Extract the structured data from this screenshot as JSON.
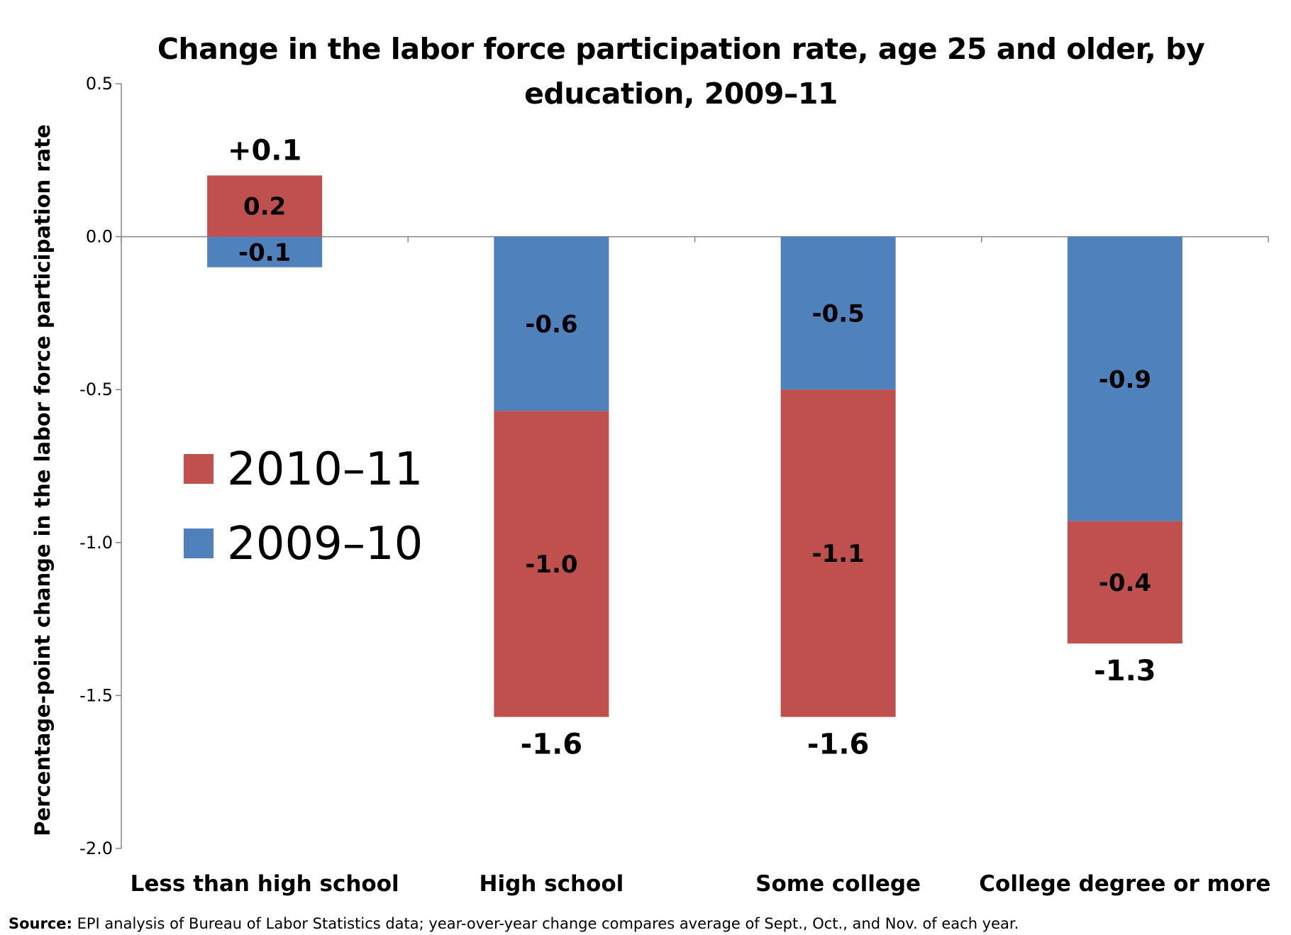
{
  "chart_data": {
    "type": "bar",
    "stacked": true,
    "title": "Change in the labor force participation rate, age 25 and older, by education, 2009–11",
    "ylabel": "Percentage-point change in the labor force participation rate",
    "xlabel": "",
    "ylim": [
      -2.0,
      0.5
    ],
    "yticks": [
      "0.5",
      "0.0",
      "-0.5",
      "-1.0",
      "-1.5",
      "-2.0"
    ],
    "ytick_values": [
      0.5,
      0.0,
      -0.5,
      -1.0,
      -1.5,
      -2.0
    ],
    "categories": [
      "Less than high school",
      "High school",
      "Some college",
      "College degree or more"
    ],
    "series": [
      {
        "name": "2009–10",
        "color": "#4f81bd",
        "values": [
          -0.1,
          -0.57,
          -0.5,
          -0.93
        ],
        "labels": [
          "-0.1",
          "-0.6",
          "-0.5",
          "-0.9"
        ]
      },
      {
        "name": "2010–11",
        "color": "#c0504d",
        "values": [
          0.2,
          -1.0,
          -1.07,
          -0.4
        ],
        "labels": [
          "0.2",
          "-1.0",
          "-1.1",
          "-0.4"
        ]
      }
    ],
    "totals": [
      "+0.1",
      "-1.6",
      "-1.6",
      "-1.3"
    ],
    "total_values": [
      0.1,
      -1.57,
      -1.57,
      -1.33
    ],
    "legend": {
      "placement": "center-left",
      "order": [
        "2010–11",
        "2009–10"
      ]
    },
    "grid": false
  },
  "source": {
    "label": "Source:",
    "text": " EPI analysis of Bureau of Labor Statistics data; year-over-year change compares average of Sept., Oct., and Nov. of each year."
  }
}
